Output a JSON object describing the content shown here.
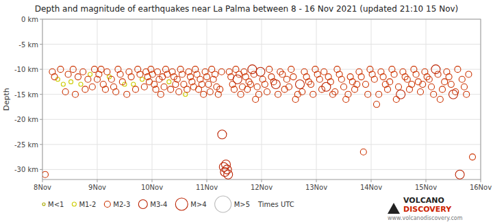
{
  "chart_data": {
    "type": "scatter",
    "title": "Depth and magnitude of earthquakes near La Palma between 8 - 16 Nov 2021 (updated 21:10 15 Nov)",
    "y_label": "Depth",
    "xlim": [
      0,
      8
    ],
    "ylim": [
      -32,
      0
    ],
    "xticks": [
      {
        "value": 0,
        "label": "8Nov"
      },
      {
        "value": 1,
        "label": "9Nov"
      },
      {
        "value": 2,
        "label": "10Nov"
      },
      {
        "value": 3,
        "label": "11Nov"
      },
      {
        "value": 4,
        "label": "12Nov"
      },
      {
        "value": 5,
        "label": "13Nov"
      },
      {
        "value": 6,
        "label": "14Nov"
      },
      {
        "value": 7,
        "label": "15Nov"
      },
      {
        "value": 8,
        "label": "16Nov"
      }
    ],
    "yticks": [
      {
        "value": 0,
        "label": "0 km"
      },
      {
        "value": -5,
        "label": "-5 km"
      },
      {
        "value": -10,
        "label": "-10 km"
      },
      {
        "value": -15,
        "label": "-15 km"
      },
      {
        "value": -20,
        "label": "-20 km"
      },
      {
        "value": -25,
        "label": "-25 km"
      },
      {
        "value": -30,
        "label": "-30 km"
      }
    ],
    "grid": true,
    "legend": "bottom",
    "marker": "circle",
    "annotations": [
      "Times UTC",
      "VOLCANO",
      "DISCOVERY",
      "www.volcanodiscovery.com"
    ],
    "series": [
      {
        "name": "M<1",
        "color": "#aaaa00",
        "x": [],
        "values": []
      },
      {
        "name": "M1-2",
        "color": "#cccc00",
        "x": [
          0.28,
          0.38,
          0.52,
          0.7,
          0.87,
          1.22,
          1.5,
          1.66,
          1.82,
          2.31,
          2.61
        ],
        "values": [
          -12.0,
          -13.0,
          -12.5,
          -13.0,
          -11.0,
          -11.5,
          -13.0,
          -13.0,
          -12.0,
          -12.5,
          -15.0
        ]
      },
      {
        "name": "M2-3",
        "color": "#cc3300",
        "x": [
          0.05,
          0.18,
          0.22,
          0.33,
          0.42,
          0.47,
          0.56,
          0.6,
          0.65,
          0.74,
          0.78,
          0.83,
          0.91,
          0.95,
          1.0,
          1.03,
          1.07,
          1.11,
          1.15,
          1.18,
          1.26,
          1.3,
          1.34,
          1.38,
          1.42,
          1.46,
          1.54,
          1.58,
          1.62,
          1.7,
          1.74,
          1.78,
          1.86,
          1.89,
          1.92,
          1.95,
          1.98,
          2.01,
          2.04,
          2.07,
          2.1,
          2.13,
          2.16,
          2.19,
          2.22,
          2.25,
          2.28,
          2.34,
          2.37,
          2.4,
          2.43,
          2.46,
          2.49,
          2.52,
          2.55,
          2.58,
          2.64,
          2.67,
          2.7,
          2.73,
          2.76,
          2.79,
          2.82,
          2.85,
          2.88,
          2.91,
          2.94,
          2.97,
          3.0,
          3.03,
          3.06,
          3.09,
          3.12,
          3.15,
          3.18,
          3.21,
          3.24,
          3.27,
          3.41,
          3.44,
          3.47,
          3.5,
          3.53,
          3.59,
          3.62,
          3.65,
          3.68,
          3.71,
          3.74,
          3.77,
          3.8,
          3.86,
          3.89,
          3.92,
          3.95,
          4.02,
          4.06,
          4.1,
          4.14,
          4.18,
          4.22,
          4.3,
          4.34,
          4.38,
          4.42,
          4.46,
          4.5,
          4.54,
          4.58,
          4.62,
          4.66,
          4.74,
          4.78,
          4.82,
          4.86,
          4.9,
          4.94,
          4.98,
          5.02,
          5.06,
          5.1,
          5.14,
          5.22,
          5.26,
          5.3,
          5.34,
          5.38,
          5.42,
          5.46,
          5.5,
          5.54,
          5.58,
          5.62,
          5.66,
          5.7,
          5.74,
          5.78,
          5.82,
          5.86,
          5.9,
          5.94,
          5.98,
          6.02,
          6.06,
          6.1,
          6.14,
          6.18,
          6.22,
          6.26,
          6.3,
          6.34,
          6.38,
          6.42,
          6.46,
          6.5,
          6.58,
          6.62,
          6.66,
          6.7,
          6.74,
          6.78,
          6.82,
          6.86,
          6.9,
          6.94,
          6.98,
          7.02,
          7.06,
          7.1,
          7.14,
          7.22,
          7.26,
          7.3,
          7.34,
          7.38,
          7.42,
          7.46,
          7.54,
          7.58,
          7.66,
          7.7,
          7.74,
          7.78,
          7.85
        ],
        "values": [
          -31.0,
          -10.5,
          -11.5,
          -10.0,
          -14.5,
          -11.0,
          -10.0,
          -15.0,
          -11.5,
          -10.5,
          -14.0,
          -12.0,
          -13.5,
          -10.0,
          -12.0,
          -11.0,
          -10.0,
          -13.0,
          -14.0,
          -10.5,
          -12.0,
          -13.5,
          -14.5,
          -10.0,
          -11.0,
          -12.5,
          -15.0,
          -10.5,
          -11.5,
          -14.0,
          -10.0,
          -11.0,
          -13.5,
          -10.5,
          -11.5,
          -12.5,
          -10.0,
          -11.0,
          -13.0,
          -14.0,
          -10.5,
          -12.0,
          -15.0,
          -11.5,
          -13.5,
          -10.0,
          -11.0,
          -14.0,
          -10.5,
          -11.5,
          -13.0,
          -12.0,
          -14.5,
          -10.0,
          -11.0,
          -13.0,
          -14.0,
          -10.5,
          -11.5,
          -12.5,
          -13.5,
          -10.0,
          -11.0,
          -14.0,
          -12.0,
          -13.0,
          -15.0,
          -10.5,
          -11.5,
          -13.0,
          -14.5,
          -10.0,
          -12.0,
          -11.0,
          -13.5,
          -15.0,
          -14.0,
          -10.5,
          -10.5,
          -11.5,
          -13.0,
          -14.0,
          -10.0,
          -11.0,
          -15.0,
          -13.5,
          -10.5,
          -11.5,
          -14.0,
          -12.5,
          -13.0,
          -11.0,
          -16.0,
          -13.5,
          -15.0,
          -12.0,
          -13.0,
          -14.5,
          -10.0,
          -11.5,
          -12.5,
          -15.0,
          -10.5,
          -11.0,
          -14.0,
          -12.0,
          -13.5,
          -10.0,
          -11.5,
          -16.0,
          -15.0,
          -14.5,
          -10.5,
          -11.5,
          -12.5,
          -13.0,
          -15.0,
          -10.0,
          -11.0,
          -12.0,
          -14.0,
          -10.5,
          -11.5,
          -12.5,
          -15.0,
          -14.5,
          -10.0,
          -11.0,
          -12.0,
          -13.5,
          -16.0,
          -15.0,
          -11.5,
          -12.5,
          -14.0,
          -13.0,
          -10.5,
          -11.5,
          -26.5,
          -13.0,
          -15.0,
          -10.0,
          -11.0,
          -12.0,
          -17.0,
          -15.0,
          -10.5,
          -11.5,
          -13.0,
          -14.0,
          -12.5,
          -10.0,
          -11.0,
          -16.0,
          -13.5,
          -10.5,
          -11.5,
          -12.0,
          -14.0,
          -13.0,
          -10.0,
          -11.0,
          -12.5,
          -14.5,
          -13.0,
          -10.5,
          -11.5,
          -12.0,
          -13.5,
          -15.0,
          -11.0,
          -16.0,
          -14.0,
          -12.5,
          -10.5,
          -11.5,
          -13.0,
          -14.5,
          -10.0,
          -12.0,
          -13.5,
          -15.0,
          -11.0,
          -27.5
        ]
      },
      {
        "name": "M3-4",
        "color": "#bb2200",
        "x": [
          3.28,
          3.31,
          3.33,
          3.35,
          3.37,
          3.39,
          3.56,
          3.83,
          3.98,
          4.26,
          4.7,
          5.18,
          6.54,
          7.18,
          7.5,
          7.62
        ],
        "values": [
          -23.0,
          -29.5,
          -30.5,
          -29.0,
          -30.0,
          -31.0,
          -12.0,
          -10.0,
          -10.5,
          -13.0,
          -13.0,
          -13.5,
          -15.0,
          -10.0,
          -15.0,
          -31.0
        ]
      },
      {
        "name": "M>4",
        "color": "#bb2200",
        "x": [],
        "values": []
      },
      {
        "name": "M>5",
        "color": "#bbbbbb",
        "x": [],
        "values": []
      }
    ]
  }
}
